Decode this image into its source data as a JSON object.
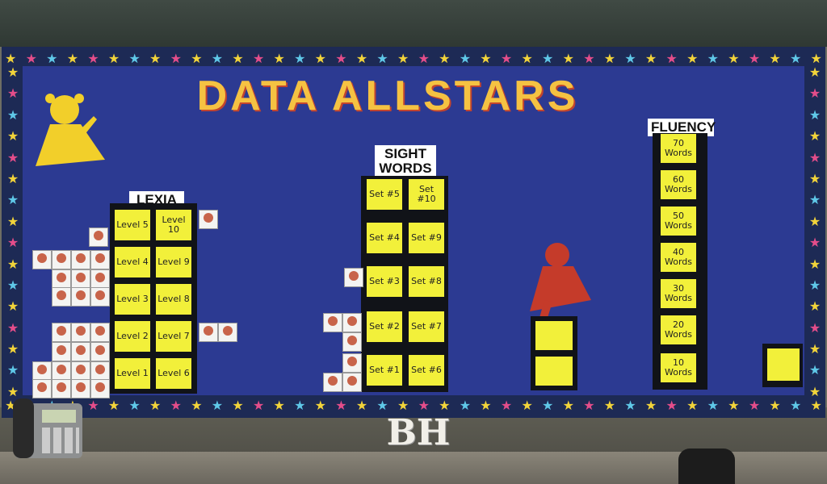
{
  "board": {
    "title": "DATA ALLSTARS",
    "colors": {
      "board": "#2c3a92",
      "note": "#f2f03a",
      "tower": "#111318"
    }
  },
  "lexia": {
    "label": "LEXIA",
    "levels": [
      "Level 5",
      "Level 10",
      "Level 4",
      "Level 9",
      "Level 3",
      "Level 8",
      "Level 2",
      "Level 7",
      "Level 1",
      "Level 6"
    ]
  },
  "sight_words": {
    "label": "SIGHT WORDS",
    "sets": [
      "Set #5",
      "Set #10",
      "Set #4",
      "Set #9",
      "Set #3",
      "Set #8",
      "Set #2",
      "Set #7",
      "Set #1",
      "Set #6"
    ]
  },
  "fluency": {
    "label": "FLUENCY",
    "words": [
      "70 Words",
      "60 Words",
      "50 Words",
      "40 Words",
      "30 Words",
      "20 Words",
      "10 Words"
    ]
  },
  "deco": {
    "letters": "BH"
  },
  "icons": [
    "superhero-silhouette-icon",
    "phone-icon",
    "star-border-icon"
  ]
}
